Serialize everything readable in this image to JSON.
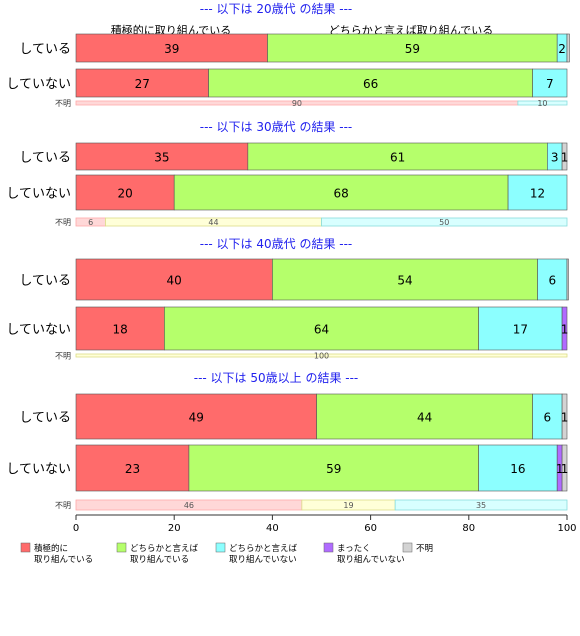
{
  "chart_data": {
    "type": "bar",
    "orientation": "horizontal",
    "stacked": true,
    "xlim": [
      0,
      100
    ],
    "x_ticks": [
      "0",
      "20",
      "40",
      "60",
      "80",
      "100"
    ],
    "grid": false,
    "legend_position": "bottom",
    "category_header_labels": [
      "積極的に取り組んでいる",
      "どちらかと言えば取り組んでいる"
    ],
    "series": [
      {
        "name": "積極的に取り組んでいる",
        "legend_lines": [
          "積極的に",
          "取り組んでいる"
        ],
        "color": "#ff6b6b"
      },
      {
        "name": "どちらかと言えば取り組んでいる",
        "legend_lines": [
          "どちらかと言えば",
          "取り組んでいる"
        ],
        "color": "#b5ff6b"
      },
      {
        "name": "どちらかと言えば取り組んでいない",
        "legend_lines": [
          "どちらかと言えば",
          "取り組んでいない"
        ],
        "color": "#8cffff"
      },
      {
        "name": "まったく取り組んでいない",
        "legend_lines": [
          "まったく",
          "取り組んでいない"
        ],
        "color": "#b06bff"
      },
      {
        "name": "不明",
        "legend_lines": [
          "不明"
        ],
        "color": "#d3d3d3"
      }
    ],
    "groups": [
      {
        "title": "--- 以下は 20歳代 の結果 ---",
        "rows": [
          {
            "label": "している",
            "values": [
              39,
              59,
              2,
              0,
              0.5
            ],
            "value_labels": [
              "39",
              "59",
              "2",
              "",
              ""
            ]
          },
          {
            "label": "していない",
            "values": [
              27,
              66,
              7,
              0,
              0
            ],
            "value_labels": [
              "27",
              "66",
              "7",
              "",
              ""
            ]
          }
        ],
        "unknown_row": {
          "label": "不明",
          "values": [
            90,
            0,
            10
          ],
          "value_labels": [
            "90",
            "",
            "10"
          ]
        }
      },
      {
        "title": "--- 以下は 30歳代 の結果 ---",
        "rows": [
          {
            "label": "している",
            "values": [
              35,
              61,
              3,
              0,
              1
            ],
            "value_labels": [
              "35",
              "61",
              "3",
              "",
              "1"
            ]
          },
          {
            "label": "していない",
            "values": [
              20,
              68,
              12,
              0,
              0
            ],
            "value_labels": [
              "20",
              "68",
              "12",
              "",
              ""
            ]
          }
        ],
        "unknown_row": {
          "label": "不明",
          "values": [
            6,
            44,
            50
          ],
          "value_labels": [
            "6",
            "44",
            "50"
          ]
        }
      },
      {
        "title": "--- 以下は 40歳代 の結果 ---",
        "rows": [
          {
            "label": "している",
            "values": [
              40,
              54,
              6,
              0,
              0.3
            ],
            "value_labels": [
              "40",
              "54",
              "6",
              "",
              ""
            ]
          },
          {
            "label": "していない",
            "values": [
              18,
              64,
              17,
              1,
              0
            ],
            "value_labels": [
              "18",
              "64",
              "17",
              "1",
              ""
            ]
          }
        ],
        "unknown_row": {
          "label": "不明",
          "values": [
            0,
            100,
            0
          ],
          "value_labels": [
            "",
            "100",
            ""
          ]
        }
      },
      {
        "title": "--- 以下は 50歳以上 の結果 ---",
        "rows": [
          {
            "label": "している",
            "values": [
              49,
              44,
              6,
              0,
              1
            ],
            "value_labels": [
              "49",
              "44",
              "6",
              "",
              "1"
            ]
          },
          {
            "label": "していない",
            "values": [
              23,
              59,
              16,
              1,
              1
            ],
            "value_labels": [
              "23",
              "59",
              "16",
              "1",
              "1"
            ]
          }
        ],
        "unknown_row": {
          "label": "不明",
          "values": [
            46,
            19,
            35
          ],
          "value_labels": [
            "46",
            "19",
            "35"
          ]
        }
      }
    ]
  },
  "colors": {
    "title": "#2222ee",
    "unknown_row_fills": [
      "#ffd8d8",
      "#ffffd8",
      "#d8ffff"
    ],
    "unknown_row_borders": [
      "#ffaaaa",
      "#dddd88",
      "#88dddd"
    ]
  }
}
